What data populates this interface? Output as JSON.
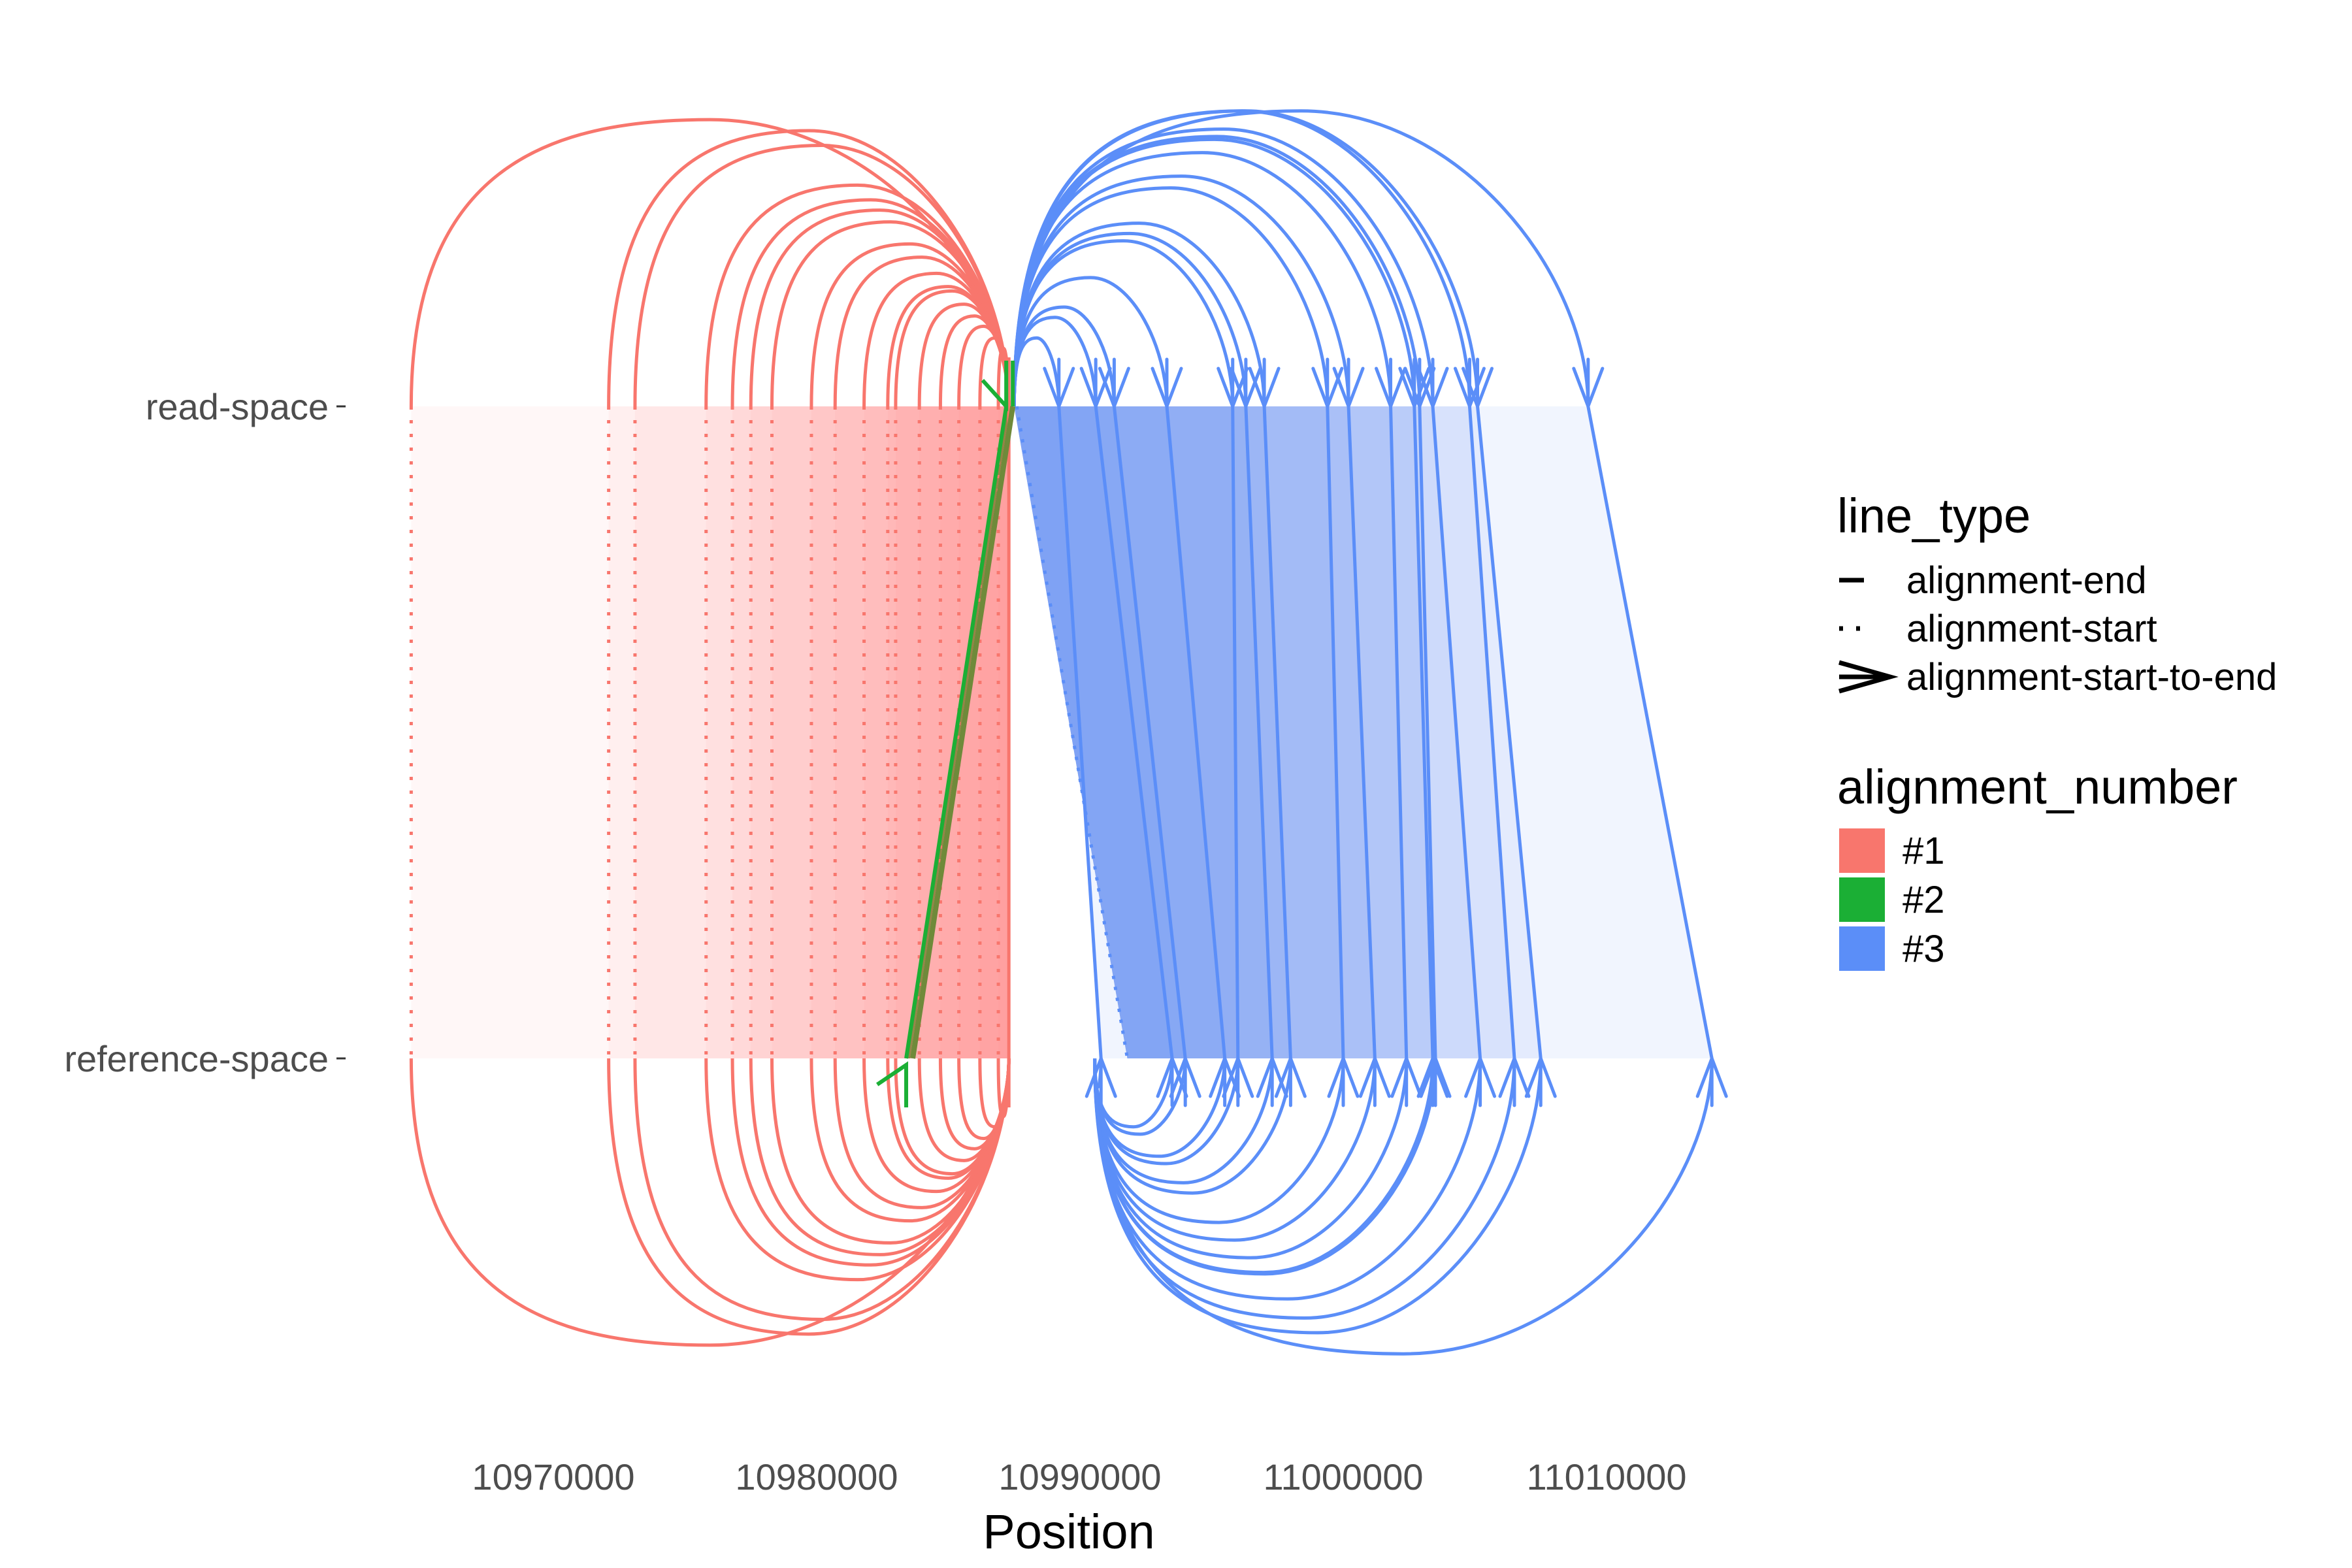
{
  "chart_data": {
    "type": "alignment-arc-diagram",
    "title": "",
    "xlabel": "Position",
    "ylabel": "",
    "xlim": [
      10960000,
      11018000
    ],
    "x_ticks": [
      10970000,
      10980000,
      10990000,
      11000000,
      11010000
    ],
    "x_tick_labels": [
      "10970000",
      "10980000",
      "10990000",
      "11000000",
      "11010000"
    ],
    "y_categories": [
      "read-space",
      "reference-space"
    ],
    "grid": false,
    "legend_position": "right",
    "line_type_legend": {
      "title": "line_type",
      "items": [
        "alignment-end",
        "alignment-start",
        "alignment-start-to-end"
      ]
    },
    "alignment_legend": {
      "title": "alignment_number",
      "items": [
        {
          "label": "#1",
          "color": "#F8766D"
        },
        {
          "label": "#2",
          "color": "#1BAF35"
        },
        {
          "label": "#3",
          "color": "#5B8EF8"
        }
      ]
    },
    "series": [
      {
        "name": "#1",
        "color": "#F8766D",
        "read_end": 10987300,
        "ref_end": 10987300,
        "starts": [
          10964600,
          10972100,
          10973100,
          10975800,
          10976800,
          10977500,
          10978300,
          10979800,
          10980700,
          10981800,
          10982700,
          10983000,
          10983900,
          10984700,
          10985400,
          10986200,
          10986900
        ]
      },
      {
        "name": "#2",
        "color": "#1BAF35",
        "read_start": 10987200,
        "read_end": 10986300,
        "ref_start": 10983400,
        "ref_end": 10982300
      },
      {
        "name": "#3",
        "color": "#5B8EF8",
        "read_start": 10987500,
        "ref_start": 10991800,
        "read_ends": [
          10989200,
          10990600,
          10991300,
          10993300,
          10995800,
          10996300,
          10997000,
          10999400,
          11000200,
          11001800,
          11002700,
          11002900,
          11003400,
          11004800,
          11005100,
          11009300
        ],
        "ref_ends": [
          10990800,
          10993500,
          10994000,
          10995500,
          10996000,
          10997300,
          10998000,
          11000000,
          11001200,
          11002400,
          11003400,
          11003500,
          11005200,
          11006500,
          11007500,
          11014000
        ]
      }
    ]
  }
}
